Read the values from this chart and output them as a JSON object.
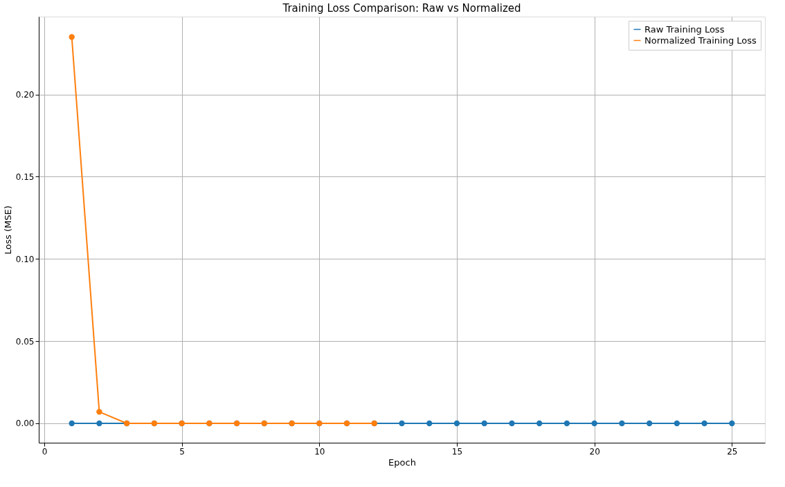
{
  "chart_data": {
    "type": "line",
    "title": "Training Loss Comparison: Raw vs Normalized",
    "xlabel": "Epoch",
    "ylabel": "Loss (MSE)",
    "x": [
      1,
      2,
      3,
      4,
      5,
      6,
      7,
      8,
      9,
      10,
      11,
      12,
      13,
      14,
      15,
      16,
      17,
      18,
      19,
      20,
      21,
      22,
      23,
      24,
      25
    ],
    "series": [
      {
        "name": "Raw Training Loss",
        "color": "#1f77b4",
        "values": [
          0,
          0,
          0,
          0,
          0,
          0,
          0,
          0,
          0,
          0,
          0,
          0,
          0,
          0,
          0,
          0,
          0,
          0,
          0,
          0,
          0,
          0,
          0,
          0,
          0
        ]
      },
      {
        "name": "Normalized Training Loss",
        "color": "#ff7f0e",
        "x": [
          1,
          2,
          3,
          4,
          5,
          6,
          7,
          8,
          9,
          10,
          11,
          12
        ],
        "values": [
          0.235,
          0.007,
          0,
          0,
          0,
          0,
          0,
          0,
          0,
          0,
          0,
          0
        ]
      }
    ],
    "xlim": [
      -0.2,
      26.2
    ],
    "ylim": [
      -0.0118,
      0.2474
    ],
    "xticks": [
      0,
      5,
      10,
      15,
      20,
      25
    ],
    "yticks": [
      {
        "value": 0,
        "label": "0.00"
      },
      {
        "value": 0.05,
        "label": "0.05"
      },
      {
        "value": 0.1,
        "label": "0.10"
      },
      {
        "value": 0.15,
        "label": "0.15"
      },
      {
        "value": 0.2,
        "label": "0.20"
      }
    ],
    "grid": true,
    "legend": "top right",
    "marker": "circle",
    "line_style": "solid"
  }
}
